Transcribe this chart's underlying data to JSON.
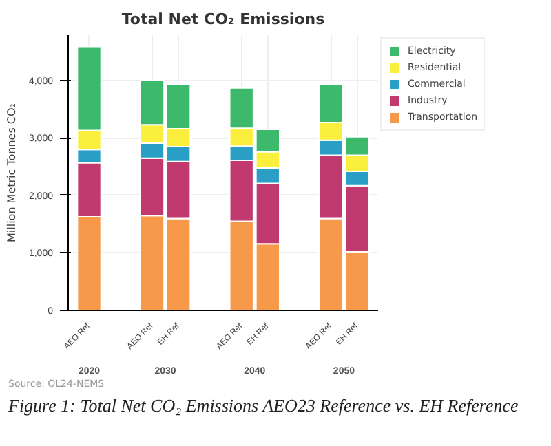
{
  "chart_data": {
    "type": "bar",
    "stacked": true,
    "title": "Total Net CO₂ Emissions",
    "ylabel": "Million Metric Tonnes CO₂",
    "categories": [
      "AEO Ref",
      "AEO Ref",
      "EH Ref",
      "AEO Ref",
      "EH Ref",
      "AEO Ref",
      "EH Ref"
    ],
    "series": [
      {
        "name": "Transportation",
        "color": "#f7994a",
        "values": [
          1630,
          1650,
          1600,
          1550,
          1160,
          1600,
          1020
        ]
      },
      {
        "name": "Industry",
        "color": "#c0396f",
        "values": [
          940,
          1000,
          990,
          1060,
          1050,
          1100,
          1150
        ]
      },
      {
        "name": "Commercial",
        "color": "#2a9fc6",
        "values": [
          230,
          260,
          260,
          250,
          270,
          260,
          250
        ]
      },
      {
        "name": "Residential",
        "color": "#f9ef3c",
        "values": [
          330,
          320,
          310,
          310,
          280,
          310,
          280
        ]
      },
      {
        "name": "Electricity",
        "color": "#3cb96a",
        "values": [
          1450,
          770,
          770,
          700,
          390,
          670,
          320
        ]
      }
    ],
    "ylim": [
      0,
      4790
    ],
    "yticks": [
      0,
      {
        "value": 1000,
        "label": "1,000"
      },
      {
        "value": 2000,
        "label": "2,000"
      },
      {
        "value": 3000,
        "label": "3,000"
      },
      {
        "value": 4000,
        "label": "4,000"
      }
    ],
    "grid": true,
    "legend": "top right",
    "annotations": [
      "2020",
      "2030",
      "2040",
      "2050",
      "Source: OL24-NEMS",
      "Figure 1: Total Net CO₂ Emissions AEO23 Reference vs. EH Reference"
    ]
  }
}
